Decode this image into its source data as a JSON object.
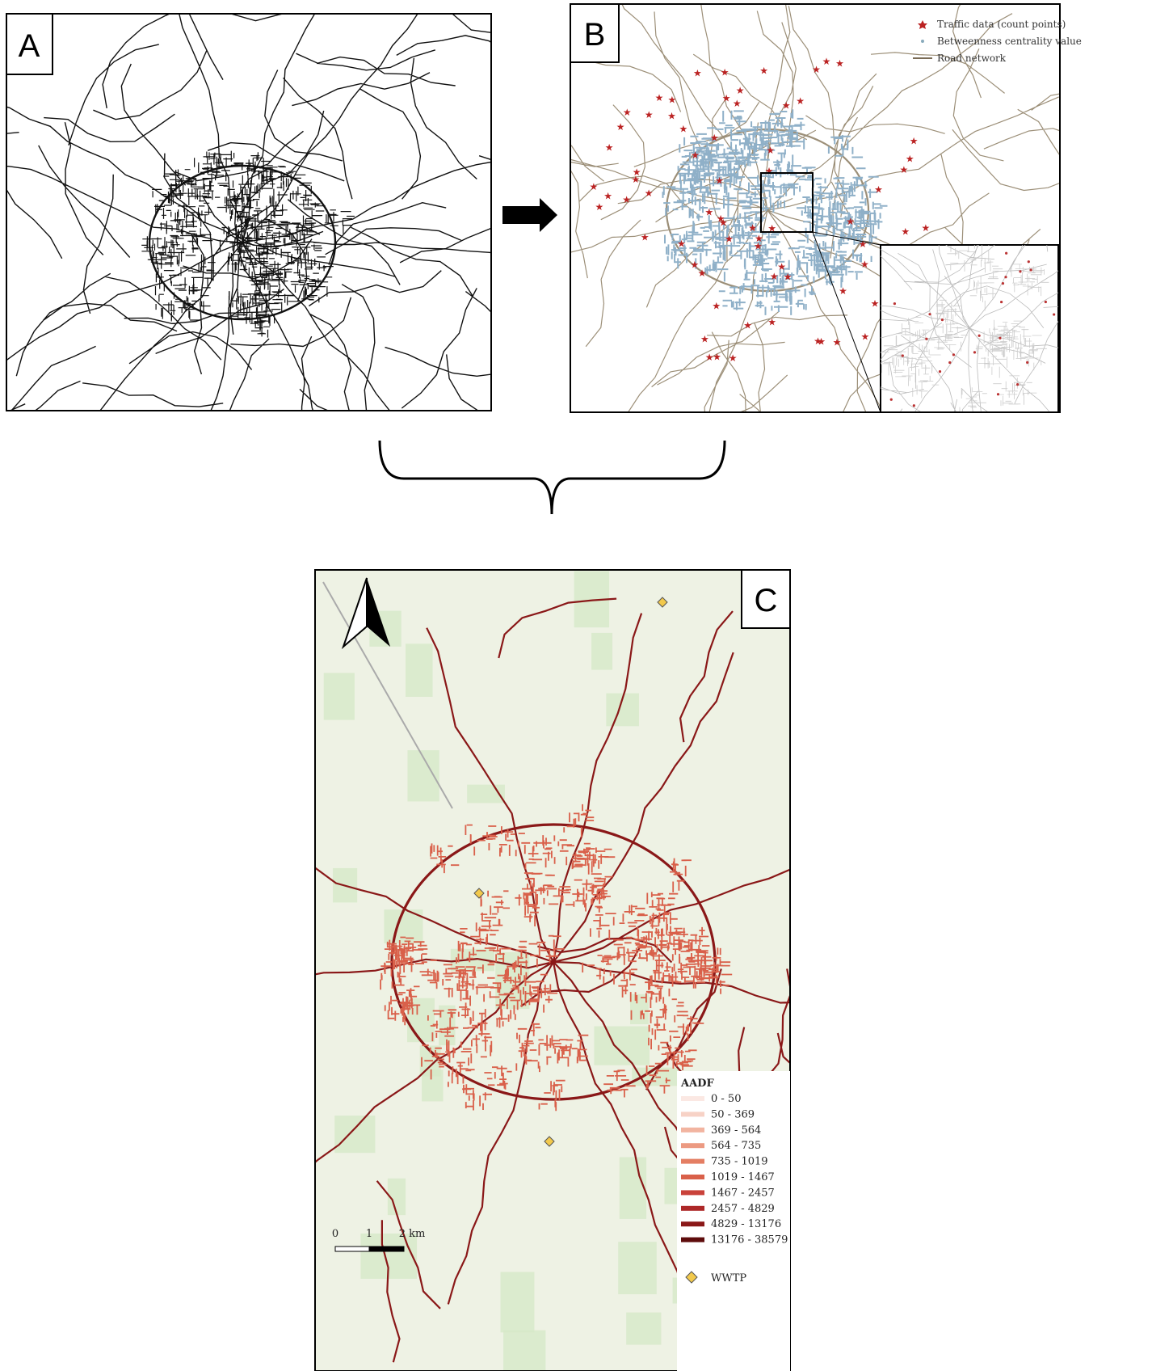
{
  "panel_a": {
    "label": "A"
  },
  "panel_b": {
    "label": "B",
    "legend": [
      {
        "label": "Traffic data (count points)"
      },
      {
        "label": "Betweenness centrality value"
      },
      {
        "label": "Road network"
      }
    ]
  },
  "panel_c": {
    "label": "C",
    "legend_title": "AADF",
    "legend": [
      {
        "label": "0 - 50",
        "color": "#fbe8e3"
      },
      {
        "label": "50 - 369",
        "color": "#f7d2c6"
      },
      {
        "label": "369 - 564",
        "color": "#f2b4a0"
      },
      {
        "label": "564 - 735",
        "color": "#ec9a82"
      },
      {
        "label": "735 - 1019",
        "color": "#e47e63"
      },
      {
        "label": "1019 - 1467",
        "color": "#d9604a"
      },
      {
        "label": "1467 - 2457",
        "color": "#c9423a"
      },
      {
        "label": "2457 - 4829",
        "color": "#ad2828"
      },
      {
        "label": "4829 - 13176",
        "color": "#8a1818"
      },
      {
        "label": "13176 - 38579",
        "color": "#5e0c0c"
      }
    ],
    "wwtp": "WWTP",
    "scale_bar": [
      "0",
      "1",
      "2 km"
    ]
  }
}
